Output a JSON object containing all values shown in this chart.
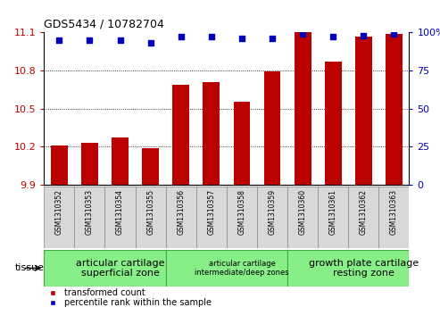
{
  "title": "GDS5434 / 10782704",
  "samples": [
    "GSM1310352",
    "GSM1310353",
    "GSM1310354",
    "GSM1310355",
    "GSM1310356",
    "GSM1310357",
    "GSM1310358",
    "GSM1310359",
    "GSM1310360",
    "GSM1310361",
    "GSM1310362",
    "GSM1310363"
  ],
  "transformed_count": [
    10.21,
    10.23,
    10.27,
    10.185,
    10.69,
    10.71,
    10.55,
    10.79,
    11.1,
    10.87,
    11.07,
    11.09
  ],
  "percentile_rank": [
    95,
    95,
    95,
    93,
    97,
    97,
    96,
    96,
    99,
    97,
    98,
    99
  ],
  "ylim_left": [
    9.9,
    11.1
  ],
  "yticks_left": [
    9.9,
    10.2,
    10.5,
    10.8,
    11.1
  ],
  "yticks_right": [
    0,
    25,
    50,
    75,
    100
  ],
  "bar_color": "#bb0000",
  "dot_color": "#0000bb",
  "tissue_groups": [
    {
      "label": "articular cartilage\nsuperficial zone",
      "start": 0,
      "end": 4,
      "font_size": 8
    },
    {
      "label": "articular cartilage\nintermediate/deep zones",
      "start": 4,
      "end": 8,
      "font_size": 6
    },
    {
      "label": "growth plate cartilage\nresting zone",
      "start": 8,
      "end": 12,
      "font_size": 8
    }
  ],
  "tissue_label": "tissue",
  "legend_bar_label": "transformed count",
  "legend_dot_label": "percentile rank within the sample",
  "bar_width": 0.55,
  "sample_label_bg": "#d8d8d8",
  "tissue_bg": "#88ee88",
  "tissue_edge": "#44aa44"
}
